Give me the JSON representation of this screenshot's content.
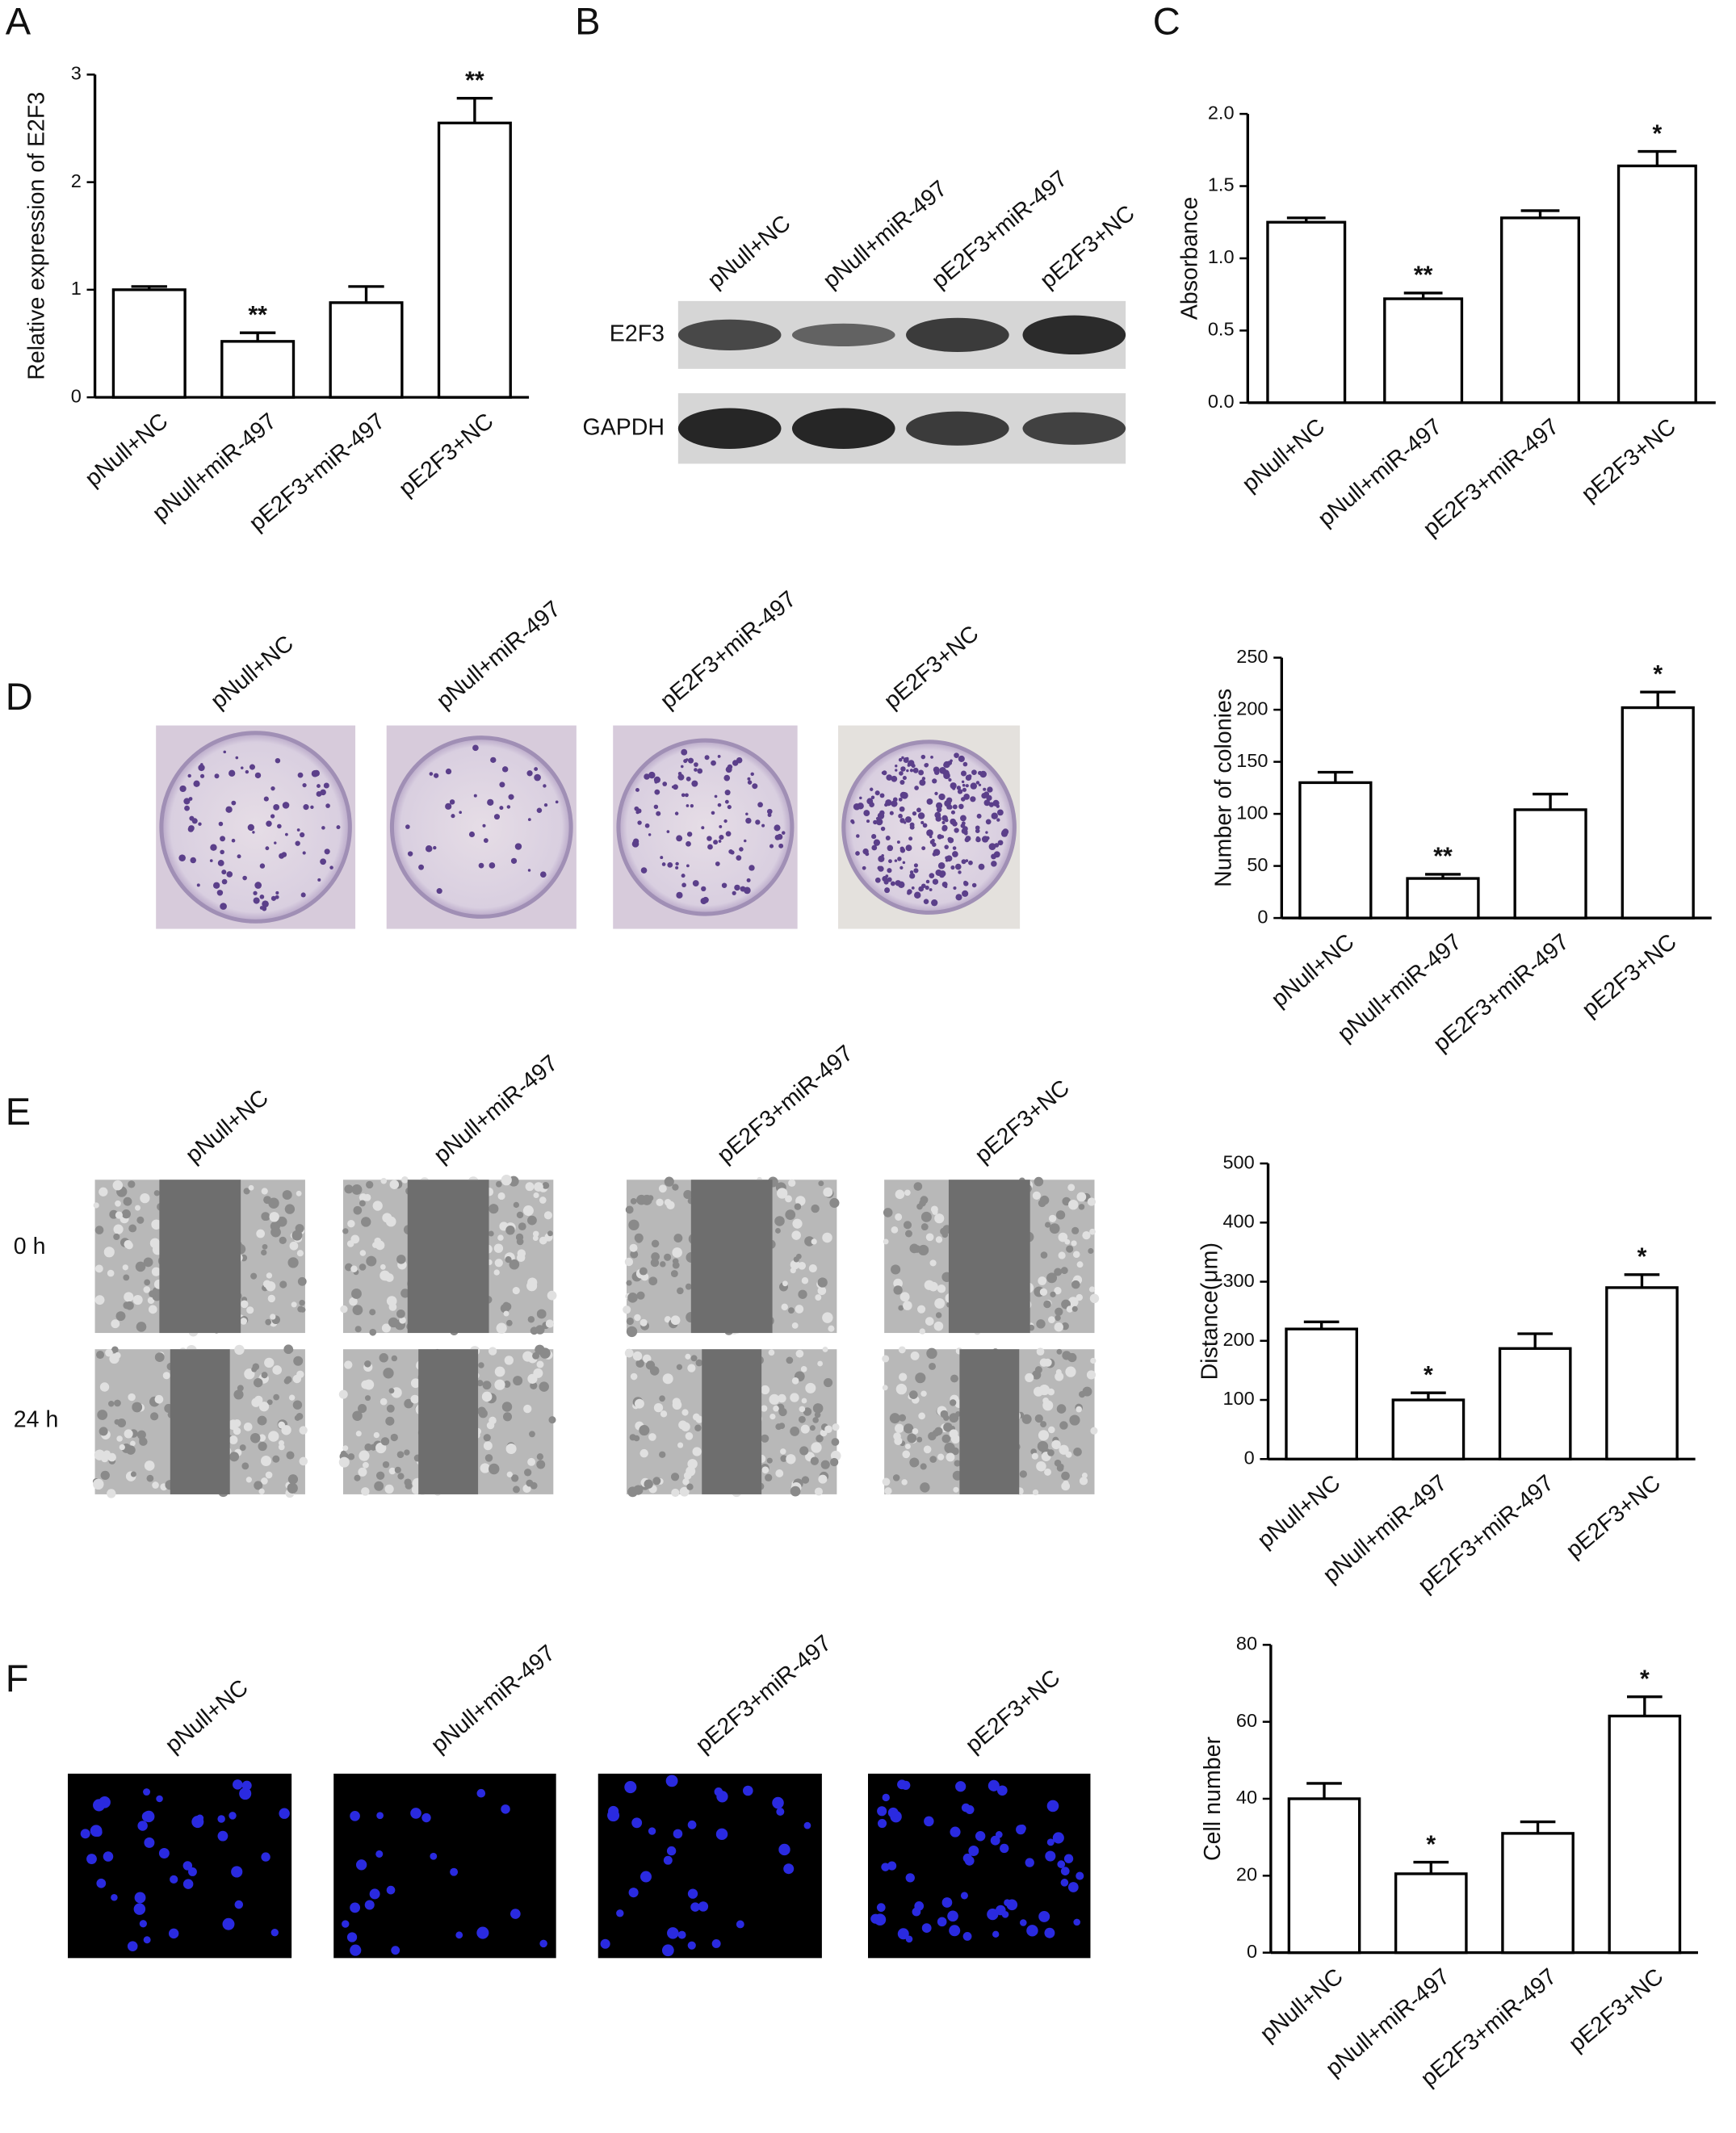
{
  "blot": {
    "panel": "B",
    "lanes": [
      "pNull+NC",
      "pNull+miR-497",
      "pE2F3+miR-497",
      "pE2F3+NC"
    ],
    "rows": [
      "E2F3",
      "GAPDH"
    ]
  },
  "colony": {
    "panel": "D",
    "labels": [
      "pNull+NC",
      "pNull+miR-497",
      "pE2F3+miR-497",
      "pE2F3+NC"
    ]
  },
  "wound": {
    "panel": "E",
    "labels": [
      "pNull+NC",
      "pNull+miR-497",
      "pE2F3+miR-497",
      "pE2F3+NC"
    ],
    "rows": [
      "0 h",
      "24 h"
    ]
  },
  "transwell": {
    "panel": "F",
    "labels": [
      "pNull+NC",
      "pNull+miR-497",
      "pE2F3+miR-497",
      "pE2F3+NC"
    ]
  },
  "chart_data": [
    {
      "type": "bar",
      "panel": "A",
      "ylabel": "Relative expression of E2F3",
      "categories": [
        "pNull+NC",
        "pNull+miR-497",
        "pE2F3+miR-497",
        "pE2F3+NC"
      ],
      "values": [
        1.0,
        0.52,
        0.88,
        2.55
      ],
      "errors": [
        0.03,
        0.08,
        0.15,
        0.23
      ],
      "annotations": [
        null,
        "**",
        null,
        "**"
      ],
      "ylim": [
        0,
        3
      ],
      "yticks": [
        0,
        1,
        2,
        3
      ],
      "color": "#ffffff"
    },
    {
      "type": "bar",
      "panel": "C",
      "ylabel": "Absorbance",
      "categories": [
        "pNull+NC",
        "pNull+miR-497",
        "pE2F3+miR-497",
        "pE2F3+NC"
      ],
      "values": [
        1.25,
        0.72,
        1.28,
        1.64
      ],
      "errors": [
        0.03,
        0.04,
        0.05,
        0.1
      ],
      "annotations": [
        null,
        "**",
        null,
        "*"
      ],
      "ylim": [
        0,
        2
      ],
      "yticks": [
        {
          "value": 0,
          "label": "0.0"
        },
        0.5,
        {
          "value": 1,
          "label": "1.0"
        },
        1.5,
        {
          "value": 2,
          "label": "2.0"
        }
      ],
      "color": "#ffffff"
    },
    {
      "type": "bar",
      "ylabel": "Number of colonies",
      "categories": [
        "pNull+NC",
        "pNull+miR-497",
        "pE2F3+miR-497",
        "pE2F3+NC"
      ],
      "values": [
        130,
        38,
        104,
        202
      ],
      "errors": [
        10,
        4,
        15,
        15
      ],
      "annotations": [
        null,
        "**",
        null,
        "*"
      ],
      "ylim": [
        0,
        250
      ],
      "yticks": [
        0,
        50,
        100,
        150,
        200,
        250
      ],
      "color": "#ffffff"
    },
    {
      "type": "bar",
      "ylabel": "Distance(μm)",
      "categories": [
        "pNull+NC",
        "pNull+miR-497",
        "pE2F3+miR-497",
        "pE2F3+NC"
      ],
      "values": [
        220,
        100,
        187,
        290
      ],
      "errors": [
        12,
        12,
        25,
        22
      ],
      "annotations": [
        null,
        "*",
        null,
        "*"
      ],
      "ylim": [
        0,
        500
      ],
      "yticks": [
        0,
        100,
        200,
        300,
        400,
        500
      ],
      "color": "#ffffff"
    },
    {
      "type": "bar",
      "ylabel": "Cell number",
      "categories": [
        "pNull+NC",
        "pNull+miR-497",
        "pE2F3+miR-497",
        "pE2F3+NC"
      ],
      "values": [
        40,
        20.5,
        31,
        61.5
      ],
      "errors": [
        4,
        3,
        3,
        5
      ],
      "annotations": [
        null,
        "*",
        null,
        "*"
      ],
      "ylim": [
        0,
        80
      ],
      "yticks": [
        0,
        20,
        40,
        60,
        80
      ],
      "color": "#ffffff"
    }
  ]
}
